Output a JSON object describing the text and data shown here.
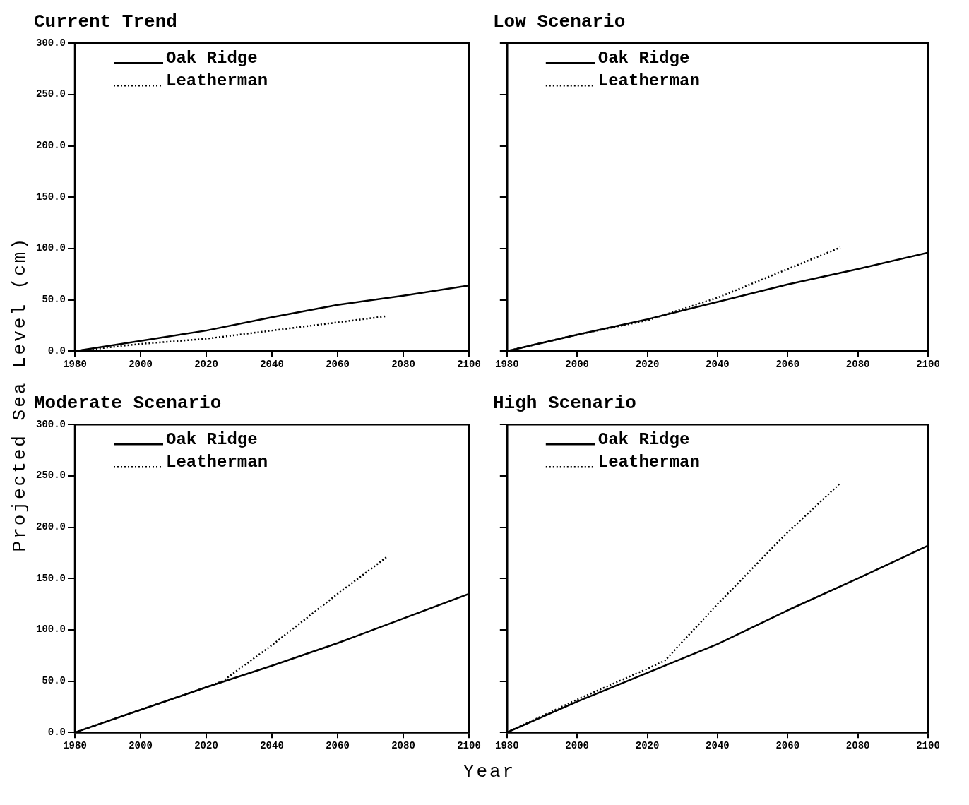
{
  "chart_data": [
    {
      "type": "line",
      "title": "Current Trend",
      "ylabel": "Projected Sea Level (cm)",
      "xlim": [
        1980,
        2100
      ],
      "xticks": [
        1980,
        2000,
        2020,
        2040,
        2060,
        2080,
        2100
      ],
      "ylim": [
        0,
        300
      ],
      "yticks": [
        {
          "value": 0,
          "label": "0.0"
        },
        {
          "value": 50,
          "label": "50.0"
        },
        {
          "value": 100,
          "label": "100.0"
        },
        {
          "value": 150,
          "label": "150.0"
        },
        {
          "value": 200,
          "label": "200.0"
        },
        {
          "value": 250,
          "label": "250.0"
        },
        {
          "value": 300,
          "label": "300.0"
        }
      ],
      "grid": false,
      "legend": "top left",
      "marker": "none",
      "series": [
        {
          "name": "Oak Ridge",
          "color": "#000000",
          "line_style": "solid",
          "x": [
            1980,
            2000,
            2020,
            2040,
            2060,
            2080,
            2100
          ],
          "values": [
            0,
            10,
            20,
            33,
            45,
            54,
            64
          ]
        },
        {
          "name": "Leatherman",
          "color": "#000000",
          "line_style": "dotted",
          "x": [
            1980,
            2000,
            2020,
            2040,
            2060,
            2075
          ],
          "values": [
            0,
            7,
            12,
            20,
            28,
            34
          ]
        }
      ]
    },
    {
      "type": "line",
      "title": "Low Scenario",
      "xlim": [
        1980,
        2100
      ],
      "xticks": [
        1980,
        2000,
        2020,
        2040,
        2060,
        2080,
        2100
      ],
      "ylim": [
        0,
        300
      ],
      "yticks": [
        0,
        50,
        100,
        150,
        200,
        250,
        300
      ],
      "tick_labels": "x",
      "grid": false,
      "legend": "top left",
      "marker": "none",
      "series": [
        {
          "name": "Oak Ridge",
          "color": "#000000",
          "line_style": "solid",
          "x": [
            1980,
            2000,
            2020,
            2040,
            2060,
            2080,
            2100
          ],
          "values": [
            0,
            16,
            31,
            48,
            65,
            80,
            96
          ]
        },
        {
          "name": "Leatherman",
          "color": "#000000",
          "line_style": "dotted",
          "x": [
            1980,
            2000,
            2020,
            2040,
            2060,
            2075
          ],
          "values": [
            0,
            16,
            30,
            52,
            80,
            101
          ]
        }
      ]
    },
    {
      "type": "line",
      "title": "Moderate Scenario",
      "xlabel": "Year",
      "xlim": [
        1980,
        2100
      ],
      "xticks": [
        1980,
        2000,
        2020,
        2040,
        2060,
        2080,
        2100
      ],
      "ylim": [
        0,
        300
      ],
      "yticks": [
        {
          "value": 0,
          "label": "0.0"
        },
        {
          "value": 50,
          "label": "50.0"
        },
        {
          "value": 100,
          "label": "100.0"
        },
        {
          "value": 150,
          "label": "150.0"
        },
        {
          "value": 200,
          "label": "200.0"
        },
        {
          "value": 250,
          "label": "250.0"
        },
        {
          "value": 300,
          "label": "300.0"
        }
      ],
      "grid": false,
      "legend": "top left",
      "marker": "none",
      "series": [
        {
          "name": "Oak Ridge",
          "color": "#000000",
          "line_style": "solid",
          "x": [
            1980,
            2000,
            2020,
            2040,
            2060,
            2080,
            2100
          ],
          "values": [
            0,
            22,
            44,
            65,
            87,
            111,
            135
          ]
        },
        {
          "name": "Leatherman",
          "color": "#000000",
          "line_style": "dotted",
          "x": [
            1980,
            2000,
            2020,
            2025,
            2040,
            2060,
            2075
          ],
          "values": [
            0,
            22,
            44,
            50,
            85,
            135,
            171
          ]
        }
      ]
    },
    {
      "type": "line",
      "title": "High Scenario",
      "xlim": [
        1980,
        2100
      ],
      "xticks": [
        1980,
        2000,
        2020,
        2040,
        2060,
        2080,
        2100
      ],
      "ylim": [
        0,
        300
      ],
      "yticks": [
        0,
        50,
        100,
        150,
        200,
        250,
        300
      ],
      "tick_labels": "x",
      "grid": false,
      "legend": "top left",
      "marker": "none",
      "series": [
        {
          "name": "Oak Ridge",
          "color": "#000000",
          "line_style": "solid",
          "x": [
            1980,
            2000,
            2020,
            2040,
            2060,
            2080,
            2100
          ],
          "values": [
            0,
            30,
            58,
            86,
            119,
            150,
            182
          ]
        },
        {
          "name": "Leatherman",
          "color": "#000000",
          "line_style": "dotted",
          "x": [
            1980,
            2000,
            2020,
            2025,
            2040,
            2060,
            2075
          ],
          "values": [
            0,
            32,
            62,
            70,
            125,
            195,
            243
          ]
        }
      ]
    }
  ]
}
